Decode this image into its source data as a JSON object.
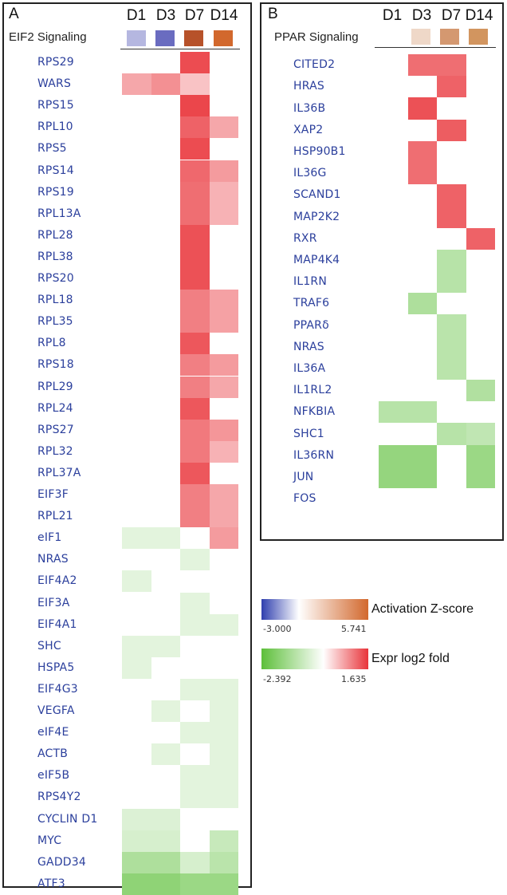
{
  "panels": [
    {
      "letter": "A",
      "pathway": "EIF2 Signaling",
      "days": [
        "D1",
        "D3",
        "D7",
        "D14"
      ],
      "zscore_colors": [
        "#b5b7e0",
        "#6a6cc0",
        "#b7522a",
        "#d2682d"
      ],
      "genes": [
        "RPS29",
        "WARS",
        "RPS15",
        "RPL10",
        "RPS5",
        "RPS14",
        "RPS19",
        "RPL13A",
        "RPL28",
        "RPL38",
        "RPS20",
        "RPL18",
        "RPL35",
        "RPL8",
        "RPS18",
        "RPL29",
        "RPL24",
        "RPS27",
        "RPL32",
        "RPL37A",
        "EIF3F",
        "RPL21",
        "eIF1",
        "NRAS",
        "EIF4A2",
        "EIF3A",
        "EIF4A1",
        "SHC",
        "HSPA5",
        "EIF4G3",
        "VEGFA",
        "eIF4E",
        "ACTB",
        "eIF5B",
        "RPS4Y2",
        "CYCLIN D1",
        "MYC",
        "GADD34",
        "ATF3"
      ]
    },
    {
      "letter": "B",
      "pathway": "PPAR Signaling",
      "days": [
        "D1",
        "D3",
        "D7",
        "D14"
      ],
      "zscore_colors": [
        "#ffffff",
        "#efd8c8",
        "#d49870",
        "#d2955f"
      ],
      "genes": [
        "CITED2",
        "HRAS",
        "IL36B",
        "XAP2",
        "HSP90B1",
        "IL36G",
        "SCAND1",
        "MAP2K2",
        "RXR",
        "MAP4K4",
        "IL1RN",
        "TRAF6",
        "PPARδ",
        "NRAS",
        "IL36A",
        "IL1RL2",
        "NFKBIA",
        "SHC1",
        "IL36RN",
        "JUN",
        "FOS"
      ]
    }
  ],
  "legend": {
    "activation": {
      "title": "Activation Z-score",
      "min": "-3.000",
      "max": "5.741",
      "colors": [
        "#2f3fae",
        "#ffffff",
        "#d2682d"
      ]
    },
    "expression": {
      "title": "Expr log2 fold",
      "min": "-2.392",
      "max": "1.635",
      "colors": [
        "#5dbf3a",
        "#ffffff",
        "#e8343a"
      ]
    }
  },
  "chart_data": [
    {
      "type": "heatmap",
      "title": "EIF2 Signaling",
      "x": [
        "D1",
        "D3",
        "D7",
        "D14"
      ],
      "y": [
        "RPS29",
        "WARS",
        "RPS15",
        "RPL10",
        "RPS5",
        "RPS14",
        "RPS19",
        "RPL13A",
        "RPL28",
        "RPL38",
        "RPS20",
        "RPL18",
        "RPL35",
        "RPL8",
        "RPS18",
        "RPL29",
        "RPL24",
        "RPS27",
        "RPL32",
        "RPL37A",
        "EIF3F",
        "RPL21",
        "eIF1",
        "NRAS",
        "EIF4A2",
        "EIF3A",
        "EIF4A1",
        "SHC",
        "HSPA5",
        "EIF4G3",
        "VEGFA",
        "eIF4E",
        "ACTB",
        "eIF5B",
        "RPS4Y2",
        "CYCLIN D1",
        "MYC",
        "GADD34",
        "ATF3"
      ],
      "values": [
        [
          null,
          null,
          1.5,
          null
        ],
        [
          0.7,
          0.9,
          0.45,
          null
        ],
        [
          null,
          null,
          1.55,
          null
        ],
        [
          null,
          null,
          1.3,
          0.7
        ],
        [
          null,
          null,
          1.5,
          null
        ],
        [
          null,
          null,
          1.25,
          0.8
        ],
        [
          null,
          null,
          1.2,
          0.6
        ],
        [
          null,
          null,
          1.2,
          0.6
        ],
        [
          null,
          null,
          1.45,
          null
        ],
        [
          null,
          null,
          1.45,
          null
        ],
        [
          null,
          null,
          1.45,
          null
        ],
        [
          null,
          null,
          1.05,
          0.75
        ],
        [
          null,
          null,
          1.05,
          0.75
        ],
        [
          null,
          null,
          1.4,
          null
        ],
        [
          null,
          null,
          1.05,
          0.8
        ],
        [
          null,
          null,
          1.05,
          0.7
        ],
        [
          null,
          null,
          1.4,
          null
        ],
        [
          null,
          null,
          1.1,
          0.85
        ],
        [
          null,
          null,
          1.1,
          0.6
        ],
        [
          null,
          null,
          1.4,
          null
        ],
        [
          null,
          null,
          1.05,
          0.7
        ],
        [
          null,
          null,
          1.05,
          0.7
        ],
        [
          -0.35,
          -0.35,
          null,
          0.8
        ],
        [
          null,
          null,
          -0.35,
          null
        ],
        [
          -0.35,
          null,
          null,
          null
        ],
        [
          null,
          null,
          -0.35,
          null
        ],
        [
          null,
          null,
          -0.35,
          -0.35
        ],
        [
          -0.35,
          -0.35,
          null,
          null
        ],
        [
          -0.35,
          null,
          null,
          null
        ],
        [
          null,
          null,
          -0.35,
          -0.35
        ],
        [
          null,
          -0.35,
          null,
          -0.35
        ],
        [
          null,
          null,
          -0.35,
          -0.35
        ],
        [
          null,
          -0.35,
          null,
          -0.35
        ],
        [
          null,
          null,
          -0.35,
          -0.35
        ],
        [
          null,
          null,
          -0.35,
          -0.35
        ],
        [
          -0.45,
          -0.45,
          null,
          null
        ],
        [
          -0.55,
          -0.55,
          null,
          -0.8
        ],
        [
          -1.2,
          -1.2,
          -0.55,
          -1.0
        ],
        [
          -1.7,
          -1.7,
          -1.5,
          -1.5
        ]
      ]
    },
    {
      "type": "heatmap",
      "title": "PPAR Signaling",
      "x": [
        "D1",
        "D3",
        "D7",
        "D14"
      ],
      "y": [
        "CITED2",
        "HRAS",
        "IL36B",
        "XAP2",
        "HSP90B1",
        "IL36G",
        "SCAND1",
        "MAP2K2",
        "RXR",
        "MAP4K4",
        "IL1RN",
        "TRAF6",
        "PPARδ",
        "NRAS",
        "IL36A",
        "IL1RL2",
        "NFKBIA",
        "SHC1",
        "IL36RN",
        "JUN",
        "FOS"
      ],
      "values": [
        [
          null,
          1.2,
          1.2,
          null
        ],
        [
          null,
          null,
          1.3,
          null
        ],
        [
          null,
          1.45,
          null,
          null
        ],
        [
          null,
          null,
          1.35,
          null
        ],
        [
          null,
          1.2,
          null,
          null
        ],
        [
          null,
          1.2,
          null,
          null
        ],
        [
          null,
          null,
          1.3,
          null
        ],
        [
          null,
          null,
          1.3,
          null
        ],
        [
          null,
          null,
          null,
          1.3
        ],
        [
          null,
          null,
          -1.05,
          null
        ],
        [
          null,
          null,
          -1.05,
          null
        ],
        [
          null,
          -1.2,
          null,
          null
        ],
        [
          null,
          null,
          -1.0,
          null
        ],
        [
          null,
          null,
          -1.0,
          null
        ],
        [
          null,
          null,
          -1.0,
          null
        ],
        [
          null,
          null,
          null,
          -1.15
        ],
        [
          -1.05,
          -1.05,
          null,
          null
        ],
        [
          null,
          null,
          -1.05,
          -0.9
        ],
        [
          -1.6,
          -1.6,
          null,
          -1.5
        ],
        [
          -1.6,
          -1.6,
          null,
          -1.5
        ],
        [
          null,
          null,
          null,
          null
        ]
      ]
    }
  ]
}
